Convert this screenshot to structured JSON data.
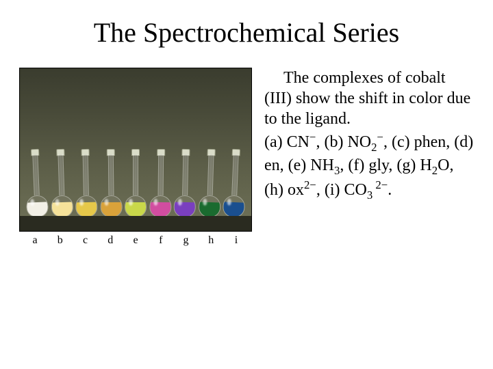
{
  "title": "The Spectrochemical Series",
  "flasks": [
    {
      "id": "a",
      "label": "a",
      "color": "#f2f0e6",
      "ligand_html": "CN<sup>−</sup>"
    },
    {
      "id": "b",
      "label": "b",
      "color": "#f5e29a",
      "ligand_html": "NO<sub>2</sub><sup>−</sup>"
    },
    {
      "id": "c",
      "label": "c",
      "color": "#e6c84a",
      "ligand_html": "phen"
    },
    {
      "id": "d",
      "label": "d",
      "color": "#d9a23a",
      "ligand_html": "en"
    },
    {
      "id": "e",
      "label": "e",
      "color": "#c9d84a",
      "ligand_html": "NH<sub>3</sub>"
    },
    {
      "id": "f",
      "label": "f",
      "color": "#d14da0",
      "ligand_html": "gly"
    },
    {
      "id": "g",
      "label": "g",
      "color": "#7a3fbf",
      "ligand_html": "H<sub>2</sub>O"
    },
    {
      "id": "h",
      "label": "h",
      "color": "#1a6b2f",
      "ligand_html": "ox<sup>2−</sup>"
    },
    {
      "id": "i",
      "label": "i",
      "color": "#1a4f8f",
      "ligand_html": "CO<sub>3</sub><sup> 2−</sup>"
    }
  ],
  "body_text": {
    "p1_html": "The complexes of cobalt (III) show the shift in color due to the ligand.",
    "p2_html": "(a) CN<sup>−</sup>, (b) NO<sub>2</sub><sup>−</sup>, (c) phen, (d) en, (e) NH<sub>3</sub>, (f) gly, (g) H<sub>2</sub>O, (h) ox<sup>2−</sup>, (i) CO<sub>3</sub><sup> 2−</sup>."
  },
  "image_meta": {
    "border_color": "#000000",
    "bg_gradient_top": "#3a3c2e",
    "bg_gradient_bottom": "#707258",
    "shelf_color": "#2a2b20"
  }
}
